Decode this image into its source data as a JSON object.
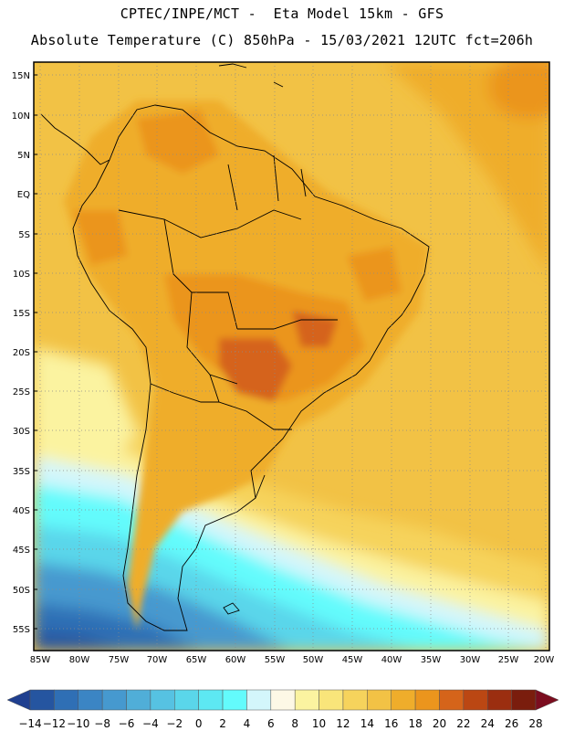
{
  "header": {
    "title_line1": "CPTEC/INPE/MCT -  Eta Model 15km - GFS",
    "title_line2": "Absolute Temperature (C) 850hPa - 15/03/2021 12UTC fct=206h"
  },
  "map": {
    "lat_labels": [
      "15N",
      "10N",
      "5N",
      "EQ",
      "5S",
      "10S",
      "15S",
      "20S",
      "25S",
      "30S",
      "35S",
      "40S",
      "45S",
      "50S",
      "55S"
    ],
    "lon_labels": [
      "85W",
      "80W",
      "75W",
      "70W",
      "65W",
      "60W",
      "55W",
      "50W",
      "45W",
      "40W",
      "35W",
      "30W",
      "25W",
      "20W"
    ],
    "region": "South America"
  },
  "colorbar": {
    "labels": [
      "-14",
      "-12",
      "-10",
      "-8",
      "-6",
      "-4",
      "-2",
      "0",
      "2",
      "4",
      "6",
      "8",
      "10",
      "12",
      "14",
      "16",
      "18",
      "20",
      "22",
      "24",
      "26",
      "28"
    ],
    "colors": [
      "#1f3f8f",
      "#2555a0",
      "#2f6fb5",
      "#3b85c4",
      "#4699cf",
      "#50aed8",
      "#56c2e2",
      "#5ad6ea",
      "#5de8f2",
      "#63fbfc",
      "#d3f6fb",
      "#fdf8e6",
      "#fbf3a0",
      "#f9e57a",
      "#f6d35c",
      "#f2c245",
      "#efad2b",
      "#eb951d",
      "#d5641a",
      "#bb4713",
      "#9b2e10",
      "#7a1d0d",
      "#7b0d1f"
    ]
  }
}
